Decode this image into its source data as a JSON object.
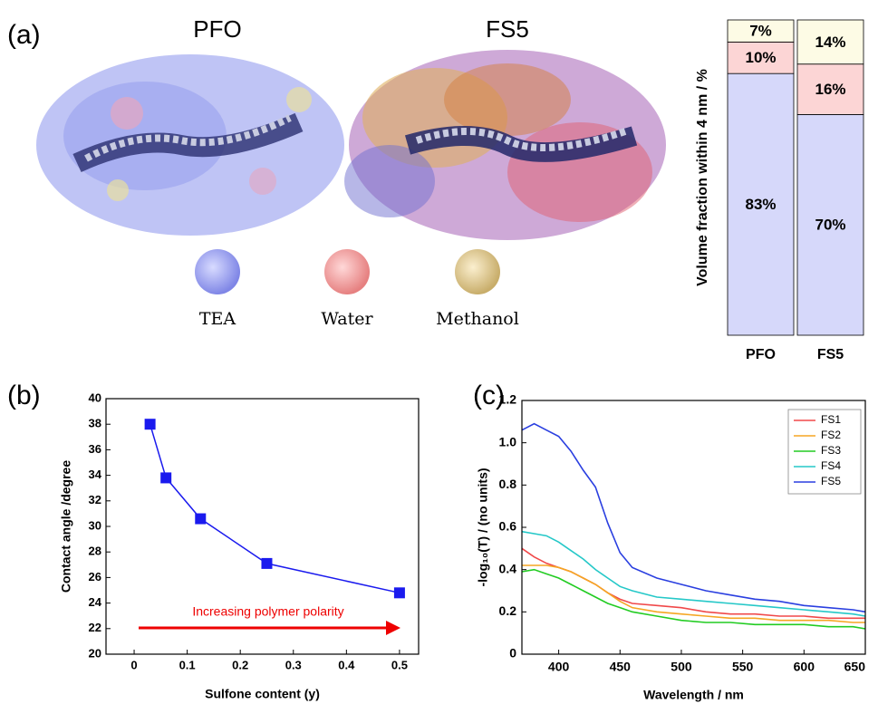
{
  "chart_data": [
    {
      "type": "stacked_bar",
      "label": "(a)",
      "structure_titles": [
        "PFO",
        "FS5"
      ],
      "ylabel": "Volume fraction within 4 nm / %",
      "categories": [
        "PFO",
        "FS5"
      ],
      "ylim": [
        0,
        100
      ],
      "series": [
        {
          "name": "TEA",
          "color": "#d6d8fa",
          "sphere_color": "#8f96ea",
          "values": [
            83,
            70
          ],
          "value_labels": [
            "83%",
            "70%"
          ]
        },
        {
          "name": "Water",
          "color": "#fcd5d5",
          "sphere_color": "#e98f8f",
          "values": [
            10,
            16
          ],
          "value_labels": [
            "10%",
            "16%"
          ]
        },
        {
          "name": "Methanol",
          "color": "#fdfbe5",
          "sphere_color": "#dcc68a",
          "values": [
            7,
            14
          ],
          "value_labels": [
            "7%",
            "14%"
          ]
        }
      ]
    },
    {
      "type": "scatter_line",
      "label": "(b)",
      "xlabel": "Sulfone content (y)",
      "ylabel": "Contact angle /degree",
      "annotation": "Increasing polymer polarity",
      "color": "#1a1aee",
      "x": [
        0.03,
        0.06,
        0.125,
        0.25,
        0.5
      ],
      "y": [
        38,
        33.8,
        30.6,
        27.1,
        24.8
      ],
      "xlim": [
        -0.053,
        0.536
      ],
      "xticks": [
        0,
        0.1,
        0.2,
        0.3,
        0.4,
        0.5
      ],
      "ylim": [
        20,
        40
      ],
      "yticks": [
        20,
        22,
        24,
        26,
        28,
        30,
        32,
        34,
        36,
        38,
        40
      ]
    },
    {
      "type": "line",
      "label": "(c)",
      "xlabel": "Wavelength / nm",
      "ylabel": "-log₁₀(T) / (no units)",
      "legend": "upper right",
      "x": [
        370,
        380,
        390,
        400,
        410,
        420,
        430,
        440,
        450,
        460,
        480,
        500,
        520,
        540,
        560,
        580,
        600,
        620,
        640,
        650
      ],
      "xlim": [
        370,
        650
      ],
      "xticks": [
        400,
        450,
        500,
        550,
        600,
        650
      ],
      "ylim": [
        0,
        1.2
      ],
      "yticks": [
        0,
        0.2,
        0.4,
        0.6,
        0.8,
        {
          "value": 1,
          "label": "1.0"
        },
        1.2
      ],
      "series": [
        {
          "name": "FS1",
          "color": "#f0494a",
          "values": [
            0.5,
            0.46,
            0.43,
            0.41,
            0.39,
            0.36,
            0.33,
            0.29,
            0.26,
            0.24,
            0.23,
            0.22,
            0.2,
            0.19,
            0.19,
            0.18,
            0.18,
            0.17,
            0.17,
            0.17
          ]
        },
        {
          "name": "FS2",
          "color": "#f5a623",
          "values": [
            0.42,
            0.42,
            0.42,
            0.41,
            0.39,
            0.36,
            0.33,
            0.29,
            0.25,
            0.22,
            0.2,
            0.19,
            0.18,
            0.17,
            0.17,
            0.16,
            0.16,
            0.16,
            0.15,
            0.15
          ]
        },
        {
          "name": "FS3",
          "color": "#22cc22",
          "values": [
            0.39,
            0.4,
            0.38,
            0.36,
            0.33,
            0.3,
            0.27,
            0.24,
            0.22,
            0.2,
            0.18,
            0.16,
            0.15,
            0.15,
            0.14,
            0.14,
            0.14,
            0.13,
            0.13,
            0.12
          ]
        },
        {
          "name": "FS4",
          "color": "#25c8c8",
          "values": [
            0.58,
            0.57,
            0.56,
            0.53,
            0.49,
            0.45,
            0.4,
            0.36,
            0.32,
            0.3,
            0.27,
            0.26,
            0.25,
            0.24,
            0.23,
            0.22,
            0.21,
            0.2,
            0.19,
            0.18
          ]
        },
        {
          "name": "FS5",
          "color": "#2a3fe0",
          "values": [
            1.06,
            1.09,
            1.06,
            1.03,
            0.96,
            0.87,
            0.79,
            0.62,
            0.48,
            0.41,
            0.36,
            0.33,
            0.3,
            0.28,
            0.26,
            0.25,
            0.23,
            0.22,
            0.21,
            0.2
          ]
        }
      ]
    }
  ]
}
